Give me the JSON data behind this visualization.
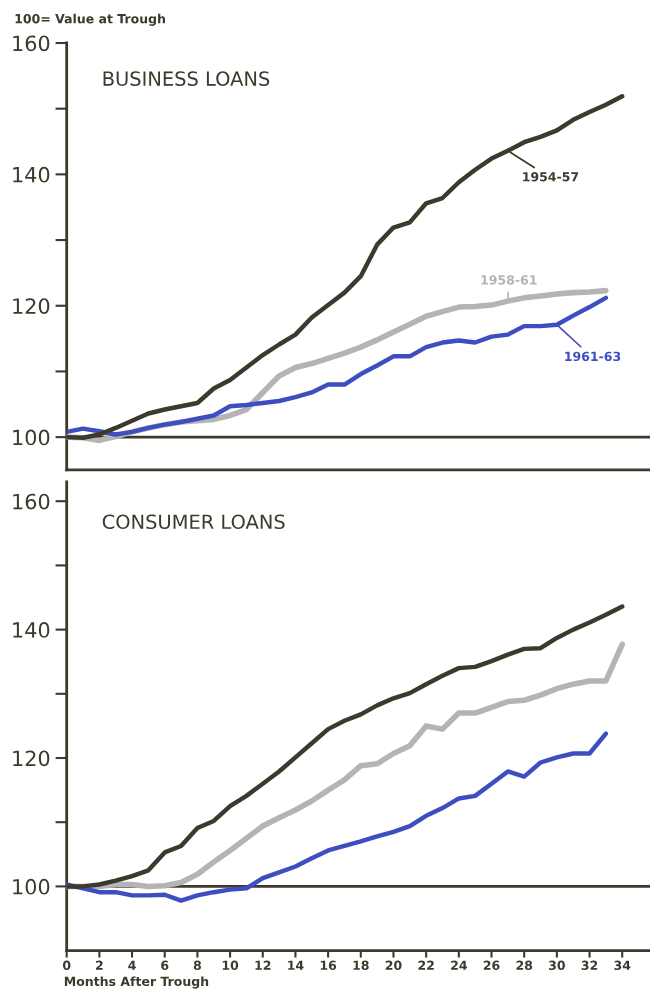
{
  "chart_data": [
    {
      "type": "line",
      "title": "BUSINESS LOANS",
      "ylabel": "100= Value at Trough",
      "x": [
        0,
        1,
        2,
        3,
        4,
        5,
        6,
        7,
        8,
        9,
        10,
        11,
        12,
        13,
        14,
        15,
        16,
        17,
        18,
        19,
        20,
        21,
        22,
        23,
        24,
        25,
        26,
        27,
        28,
        29,
        30,
        31,
        32,
        33,
        34
      ],
      "series": [
        {
          "name": "1954-57",
          "color": "#3b3a2c",
          "values": [
            100,
            99.9,
            100.4,
            101.4,
            102.5,
            103.6,
            104.2,
            104.7,
            105.2,
            107.4,
            108.7,
            110.6,
            112.5,
            114.1,
            115.6,
            118.2,
            120.1,
            122,
            124.5,
            129.3,
            131.9,
            132.7,
            135.6,
            136.4,
            138.8,
            140.7,
            142.4,
            143.6,
            144.9,
            145.7,
            146.7,
            148.3,
            149.5,
            150.6,
            151.9
          ]
        },
        {
          "name": "1958-61",
          "color": "#b4b4b4",
          "values": [
            100,
            99.9,
            99.5,
            100.1,
            100.8,
            101.4,
            101.9,
            102.3,
            102.5,
            102.7,
            103.3,
            104.2,
            106.8,
            109.3,
            110.6,
            111.2,
            112,
            112.8,
            113.7,
            114.8,
            116,
            117.2,
            118.4,
            119.1,
            119.8,
            119.9,
            120.1,
            120.7,
            121.2,
            121.5,
            121.8,
            122,
            122.1,
            122.3,
            null
          ]
        },
        {
          "name": "1961-63",
          "color": "#3d4fc0",
          "values": [
            100.8,
            101.3,
            100.9,
            100.4,
            100.8,
            101.4,
            101.9,
            102.3,
            102.8,
            103.3,
            104.7,
            104.9,
            105.2,
            105.5,
            106.1,
            106.8,
            108,
            108,
            109.6,
            110.9,
            112.3,
            112.3,
            113.7,
            114.4,
            114.7,
            114.4,
            115.3,
            115.6,
            116.9,
            116.9,
            117.1,
            118.5,
            119.8,
            121.2,
            null
          ]
        }
      ],
      "xlim": [
        0,
        35.7
      ],
      "ylim": [
        95,
        160
      ],
      "yticks": [
        100,
        {
          "value": 110,
          "label": null
        },
        120,
        {
          "value": 130,
          "label": null
        },
        140,
        {
          "value": 150,
          "label": null
        },
        160
      ],
      "ref_lines": [
        {
          "axis": "y",
          "value": 100,
          "color": "#3b3a2c"
        }
      ],
      "tick_labels": "y",
      "grid": false,
      "legend": "right",
      "marker": "none",
      "line_style": "solid"
    },
    {
      "type": "line",
      "title": "CONSUMER LOANS",
      "xlabel": "Months After Trough",
      "x": [
        0,
        1,
        2,
        3,
        4,
        5,
        6,
        7,
        8,
        9,
        10,
        11,
        12,
        13,
        14,
        15,
        16,
        17,
        18,
        19,
        20,
        21,
        22,
        23,
        24,
        25,
        26,
        27,
        28,
        29,
        30,
        31,
        32,
        33,
        34
      ],
      "series": [
        {
          "color": "#3b3a2c",
          "values": [
            100,
            100,
            100.3,
            100.9,
            101.6,
            102.5,
            105.3,
            106.3,
            109.1,
            110.2,
            112.5,
            114.1,
            116,
            117.9,
            120.1,
            122.3,
            124.5,
            125.8,
            126.8,
            128.2,
            129.3,
            130.1,
            131.5,
            132.8,
            134,
            134.2,
            135.1,
            136.1,
            137,
            137.1,
            138.7,
            140,
            141.1,
            142.3,
            143.6
          ]
        },
        {
          "color": "#b4b4b4",
          "values": [
            100,
            100,
            100,
            100.3,
            100.3,
            100,
            100.1,
            100.6,
            101.9,
            103.8,
            105.6,
            107.5,
            109.4,
            110.7,
            111.9,
            113.3,
            115,
            116.6,
            118.8,
            119.1,
            120.7,
            121.9,
            125,
            124.5,
            127,
            127,
            127.9,
            128.8,
            129,
            129.8,
            130.8,
            131.5,
            132,
            132,
            137.7
          ]
        },
        {
          "color": "#3d4fc0",
          "values": [
            100.3,
            99.7,
            99.1,
            99.1,
            98.6,
            98.6,
            98.7,
            97.8,
            98.6,
            99.1,
            99.5,
            99.7,
            101.3,
            102.2,
            103.1,
            104.4,
            105.6,
            106.3,
            107,
            107.8,
            108.5,
            109.4,
            111,
            112.2,
            113.7,
            114.1,
            116,
            117.9,
            117.1,
            119.3,
            120.1,
            120.7,
            120.7,
            123.8,
            null
          ]
        }
      ],
      "xlim": [
        0,
        35.7
      ],
      "ylim": [
        90,
        163
      ],
      "xticks": [
        0,
        2,
        4,
        6,
        8,
        10,
        12,
        14,
        16,
        18,
        20,
        22,
        24,
        26,
        28,
        30,
        32,
        34
      ],
      "yticks": [
        100,
        {
          "value": 110,
          "label": null
        },
        120,
        {
          "value": 130,
          "label": null
        },
        140,
        {
          "value": 150,
          "label": null
        },
        160
      ],
      "ref_lines": [
        {
          "axis": "y",
          "value": 100,
          "color": "#3b3a2c"
        }
      ],
      "grid": false,
      "marker": "none",
      "line_style": "solid"
    }
  ]
}
